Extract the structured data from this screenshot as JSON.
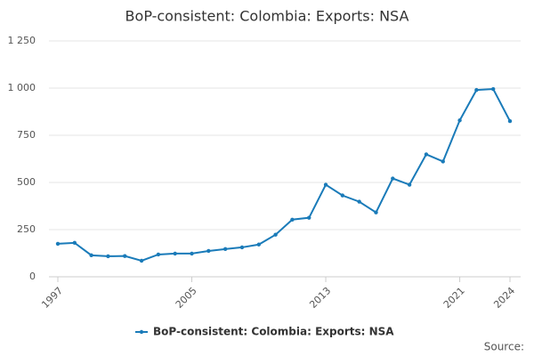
{
  "chart_data": {
    "type": "line",
    "title": "BoP-consistent: Colombia: Exports: NSA",
    "source": "Source:",
    "x": [
      1997,
      1998,
      1999,
      2000,
      2001,
      2002,
      2003,
      2004,
      2005,
      2006,
      2007,
      2008,
      2009,
      2010,
      2011,
      2012,
      2013,
      2014,
      2015,
      2016,
      2017,
      2018,
      2019,
      2020,
      2021,
      2022,
      2023,
      2024
    ],
    "series": [
      {
        "name": "BoP-consistent: Colombia: Exports: NSA",
        "color": "#1a7bb9",
        "values": [
          175,
          180,
          114,
          109,
          110,
          85,
          118,
          123,
          123,
          137,
          147,
          156,
          171,
          223,
          303,
          313,
          488,
          431,
          398,
          341,
          521,
          488,
          649,
          611,
          829,
          990,
          995,
          825
        ]
      }
    ],
    "xlim": [
      1997,
      2024
    ],
    "xticks": [
      1997,
      2005,
      2013,
      2021,
      2024
    ],
    "ylim": [
      0,
      1250
    ],
    "yticks": [
      0,
      250,
      500,
      750,
      {
        "value": 1000,
        "label": "1 000"
      },
      {
        "value": 1250,
        "label": "1 250"
      }
    ],
    "grid": true
  }
}
